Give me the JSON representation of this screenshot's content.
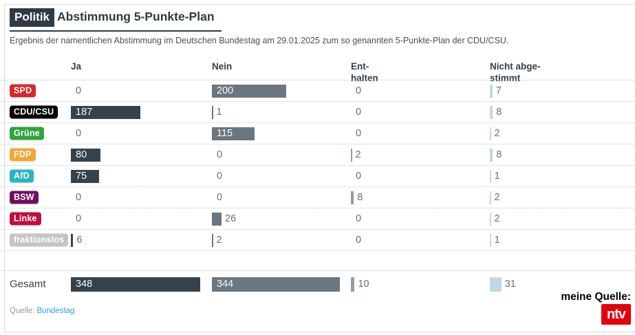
{
  "header": {
    "category": "Politik",
    "title": "Abstimmung 5-Punkte-Plan",
    "subtitle": "Ergebnis der namentlichen Abstimmung im Deutschen Bundestag am 29.01.2025 zum so genannten 5-Punkte-Plan der CDU/CSU."
  },
  "chart_data": {
    "type": "bar",
    "orientation": "horizontal",
    "columns": [
      "Ja",
      "Nein",
      "Ent-\nhalten",
      "Nicht abge-\nstimmt"
    ],
    "column_colors": [
      "#35424d",
      "#6a7781",
      "#8c9fab",
      "#bfd8e8"
    ],
    "rows": [
      {
        "party": "SPD",
        "badge_color": "#d7282e",
        "values": [
          0,
          200,
          0,
          7
        ]
      },
      {
        "party": "CDU/CSU",
        "badge_color": "#000000",
        "values": [
          187,
          1,
          0,
          8
        ]
      },
      {
        "party": "Grüne",
        "badge_color": "#2fa43b",
        "values": [
          0,
          115,
          0,
          2
        ]
      },
      {
        "party": "FDP",
        "badge_color": "#f3a73a",
        "values": [
          80,
          0,
          2,
          8
        ]
      },
      {
        "party": "AfD",
        "badge_color": "#29b5c4",
        "values": [
          75,
          0,
          0,
          1
        ]
      },
      {
        "party": "BSW",
        "badge_color": "#70105f",
        "values": [
          0,
          0,
          8,
          2
        ]
      },
      {
        "party": "Linke",
        "badge_color": "#bf0f3f",
        "values": [
          0,
          26,
          0,
          2
        ]
      },
      {
        "party": "fraktionslos",
        "badge_color": "#c4c4c4",
        "values": [
          6,
          2,
          0,
          1
        ]
      }
    ],
    "total": {
      "label": "Gesamt",
      "values": [
        348,
        344,
        10,
        31
      ]
    },
    "max_value": 348
  },
  "footer": {
    "source_prefix": "Quelle:",
    "source_link": "Bundestag",
    "attribution": "meine Quelle:",
    "brand": "ntv",
    "brand_color": "#e3000f"
  }
}
